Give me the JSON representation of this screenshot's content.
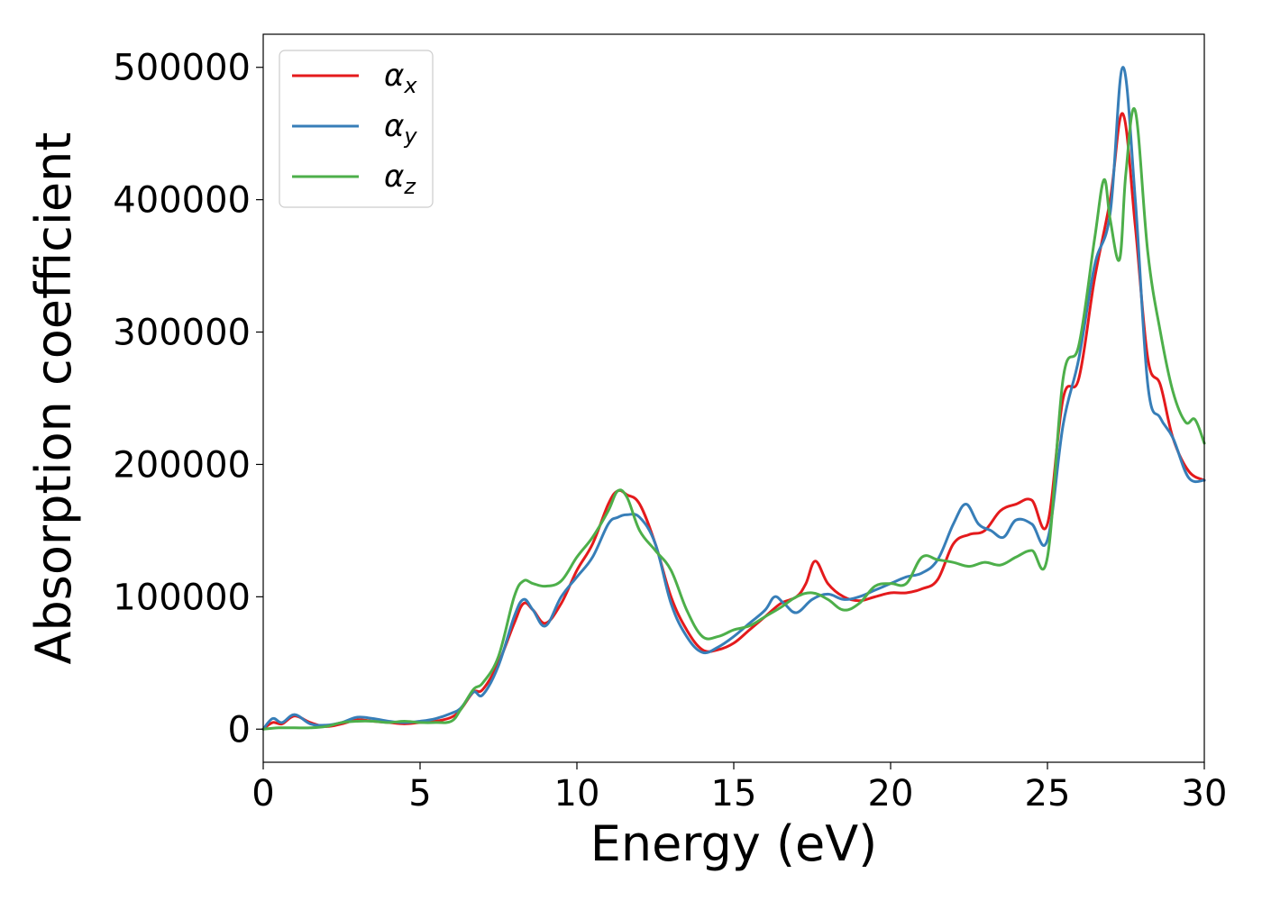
{
  "chart_data": {
    "type": "line",
    "xlabel": "Energy (eV)",
    "ylabel": "Absorption coefficient",
    "xlim": [
      0,
      30
    ],
    "ylim": [
      -25000,
      525000
    ],
    "xticks": [
      0,
      5,
      10,
      15,
      20,
      25,
      30
    ],
    "yticks": [
      0,
      100000,
      200000,
      300000,
      400000,
      500000
    ],
    "grid": false,
    "legend_position": "top-left",
    "series": [
      {
        "name": "αx",
        "symbol": "α",
        "subscript": "x",
        "color": "#e41a1c",
        "x": [
          0,
          0.3,
          0.6,
          1.0,
          1.5,
          2.0,
          2.5,
          3.0,
          3.5,
          4.0,
          4.5,
          5.0,
          5.5,
          6.0,
          6.3,
          6.7,
          7.0,
          7.5,
          8.0,
          8.3,
          8.6,
          9.0,
          9.5,
          10.0,
          10.5,
          11.0,
          11.3,
          11.6,
          12.0,
          12.5,
          13.0,
          13.5,
          14.0,
          14.5,
          15.0,
          15.5,
          16.0,
          16.5,
          17.0,
          17.3,
          17.6,
          18.0,
          18.5,
          19.0,
          19.5,
          20.0,
          20.5,
          21.0,
          21.5,
          22.0,
          22.5,
          23.0,
          23.5,
          24.0,
          24.5,
          25.0,
          25.5,
          26.0,
          26.5,
          27.0,
          27.4,
          27.8,
          28.2,
          28.6,
          29.0,
          29.5,
          30.0
        ],
        "y": [
          0,
          5000,
          4000,
          10000,
          5000,
          2000,
          4000,
          7000,
          6000,
          5000,
          4000,
          5000,
          6000,
          9000,
          15000,
          28000,
          30000,
          50000,
          80000,
          95000,
          90000,
          80000,
          95000,
          120000,
          140000,
          170000,
          180000,
          177000,
          170000,
          140000,
          100000,
          75000,
          60000,
          60000,
          65000,
          75000,
          85000,
          95000,
          100000,
          110000,
          127000,
          110000,
          100000,
          97000,
          100000,
          103000,
          103000,
          106000,
          113000,
          140000,
          147000,
          150000,
          165000,
          170000,
          173000,
          155000,
          250000,
          265000,
          340000,
          400000,
          465000,
          380000,
          280000,
          260000,
          220000,
          195000,
          188000
        ]
      },
      {
        "name": "αy",
        "symbol": "α",
        "subscript": "y",
        "color": "#377eb8",
        "x": [
          0,
          0.3,
          0.6,
          1.0,
          1.5,
          2.0,
          2.5,
          3.0,
          3.5,
          4.0,
          4.5,
          5.0,
          5.5,
          6.0,
          6.3,
          6.7,
          7.0,
          7.5,
          8.0,
          8.3,
          8.6,
          9.0,
          9.5,
          10.0,
          10.5,
          11.0,
          11.3,
          11.6,
          12.0,
          12.5,
          13.0,
          13.5,
          14.0,
          14.5,
          15.0,
          15.5,
          16.0,
          16.3,
          16.6,
          17.0,
          17.5,
          18.0,
          18.5,
          19.0,
          19.5,
          20.0,
          20.5,
          21.0,
          21.5,
          22.0,
          22.4,
          22.8,
          23.2,
          23.6,
          24.0,
          24.5,
          25.0,
          25.5,
          26.0,
          26.5,
          27.0,
          27.4,
          27.8,
          28.2,
          28.6,
          29.0,
          29.5,
          30.0
        ],
        "y": [
          0,
          8000,
          5000,
          11000,
          4000,
          3000,
          5000,
          9000,
          8000,
          6000,
          5000,
          6000,
          8000,
          12000,
          16000,
          28000,
          26000,
          48000,
          85000,
          98000,
          90000,
          78000,
          100000,
          115000,
          130000,
          155000,
          160000,
          162000,
          160000,
          140000,
          95000,
          70000,
          58000,
          62000,
          70000,
          80000,
          90000,
          100000,
          95000,
          88000,
          98000,
          102000,
          98000,
          100000,
          105000,
          110000,
          115000,
          118000,
          128000,
          155000,
          170000,
          155000,
          150000,
          145000,
          158000,
          155000,
          143000,
          230000,
          280000,
          350000,
          390000,
          500000,
          400000,
          260000,
          235000,
          220000,
          190000,
          188000
        ]
      },
      {
        "name": "αz",
        "symbol": "α",
        "subscript": "z",
        "color": "#4daf4a",
        "x": [
          0,
          0.5,
          1.0,
          1.5,
          2.0,
          2.5,
          3.0,
          3.5,
          4.0,
          4.5,
          5.0,
          5.5,
          6.0,
          6.3,
          6.7,
          7.0,
          7.5,
          8.0,
          8.3,
          8.6,
          9.0,
          9.5,
          10.0,
          10.5,
          11.0,
          11.3,
          11.6,
          12.0,
          12.5,
          13.0,
          13.5,
          14.0,
          14.5,
          15.0,
          15.5,
          16.0,
          16.5,
          17.0,
          17.5,
          18.0,
          18.5,
          19.0,
          19.5,
          20.0,
          20.5,
          21.0,
          21.5,
          22.0,
          22.5,
          23.0,
          23.5,
          24.0,
          24.5,
          25.0,
          25.5,
          26.0,
          26.5,
          26.8,
          27.0,
          27.3,
          27.5,
          27.8,
          28.2,
          28.6,
          29.0,
          29.4,
          29.7,
          30.0
        ],
        "y": [
          0,
          1000,
          1000,
          1000,
          2000,
          5000,
          6000,
          6000,
          5000,
          6000,
          5000,
          5000,
          6000,
          15000,
          30000,
          35000,
          55000,
          100000,
          112000,
          110000,
          108000,
          112000,
          130000,
          145000,
          165000,
          180000,
          175000,
          150000,
          135000,
          120000,
          90000,
          70000,
          70000,
          75000,
          78000,
          85000,
          92000,
          100000,
          103000,
          98000,
          90000,
          95000,
          108000,
          110000,
          110000,
          130000,
          128000,
          126000,
          123000,
          126000,
          124000,
          130000,
          135000,
          130000,
          265000,
          290000,
          370000,
          415000,
          385000,
          355000,
          420000,
          467000,
          360000,
          300000,
          255000,
          232000,
          234000,
          216000
        ]
      }
    ]
  }
}
